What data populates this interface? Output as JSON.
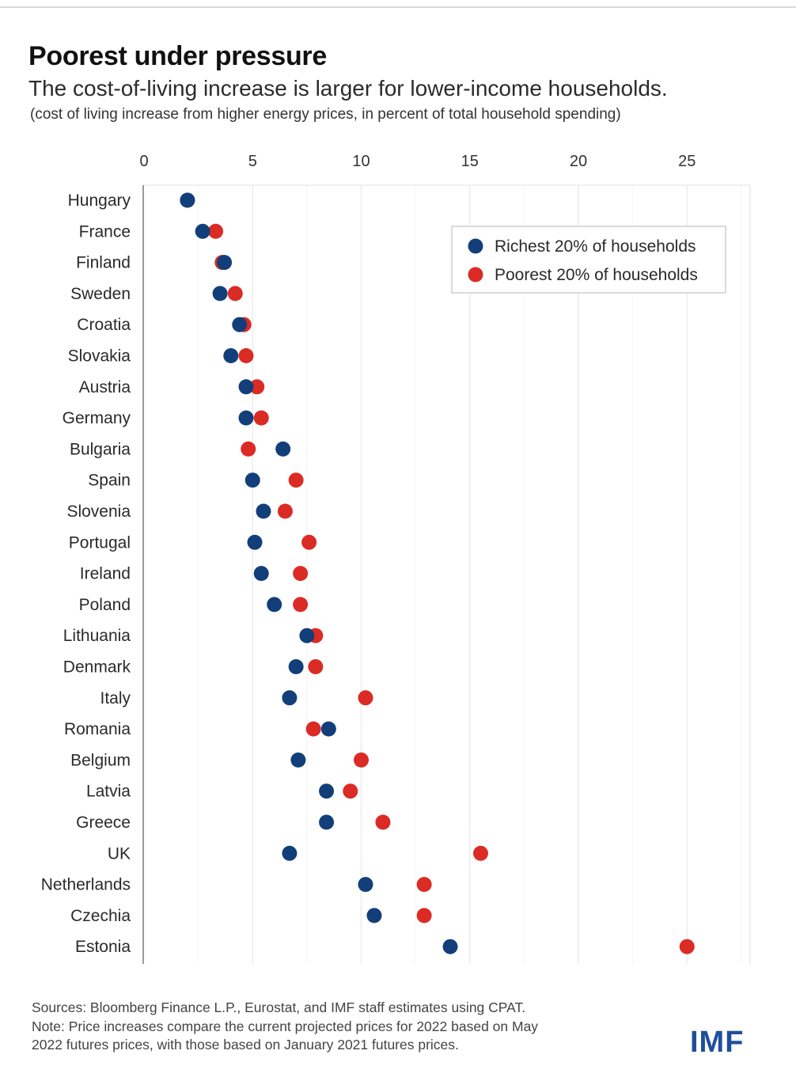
{
  "header": {
    "title": "Poorest under pressure",
    "subtitle": "The cost-of-living increase is larger for lower-income households.",
    "note": "(cost of living increase from higher energy prices, in percent of total household spending)"
  },
  "footer": {
    "sources": "Sources: Bloomberg Finance L.P., Eurostat, and IMF staff estimates using CPAT.",
    "note_line1": "Note: Price increases compare the current projected prices for 2022 based on May",
    "note_line2": "2022 futures prices, with those based on January 2021 futures prices.",
    "logo": "IMF"
  },
  "colors": {
    "richest": "#123f7a",
    "poorest": "#db2b25",
    "grid": "#ececec",
    "axis": "#9a9a9a",
    "logo": "#1f4e9c"
  },
  "chart_data": {
    "type": "scatter",
    "orientation": "horizontal-dot-plot",
    "title": "Poorest under pressure",
    "subtitle": "The cost-of-living increase is larger for lower-income households.",
    "xlabel": "",
    "ylabel": "",
    "xlim": [
      0,
      28
    ],
    "xticks": [
      0,
      5,
      10,
      15,
      20,
      25
    ],
    "grid": true,
    "legend_position": "top-right",
    "categories": [
      "Hungary",
      "France",
      "Finland",
      "Sweden",
      "Croatia",
      "Slovakia",
      "Austria",
      "Germany",
      "Bulgaria",
      "Spain",
      "Slovenia",
      "Portugal",
      "Ireland",
      "Poland",
      "Lithuania",
      "Denmark",
      "Italy",
      "Romania",
      "Belgium",
      "Latvia",
      "Greece",
      "UK",
      "Netherlands",
      "Czechia",
      "Estonia"
    ],
    "series": [
      {
        "name": "Poorest 20% of households",
        "color": "#db2b25",
        "values": [
          2.0,
          3.3,
          3.6,
          4.2,
          4.6,
          4.7,
          5.2,
          5.4,
          4.8,
          7.0,
          6.5,
          7.6,
          7.2,
          7.2,
          7.9,
          7.9,
          10.2,
          7.8,
          10.0,
          9.5,
          11.0,
          15.5,
          12.9,
          12.9,
          25.0
        ]
      },
      {
        "name": "Richest 20% of households",
        "color": "#123f7a",
        "values": [
          2.0,
          2.7,
          3.7,
          3.5,
          4.4,
          4.0,
          4.7,
          4.7,
          6.4,
          5.0,
          5.5,
          5.1,
          5.4,
          6.0,
          7.5,
          7.0,
          6.7,
          8.5,
          7.1,
          8.4,
          8.4,
          6.7,
          10.2,
          10.6,
          14.1
        ]
      }
    ]
  }
}
